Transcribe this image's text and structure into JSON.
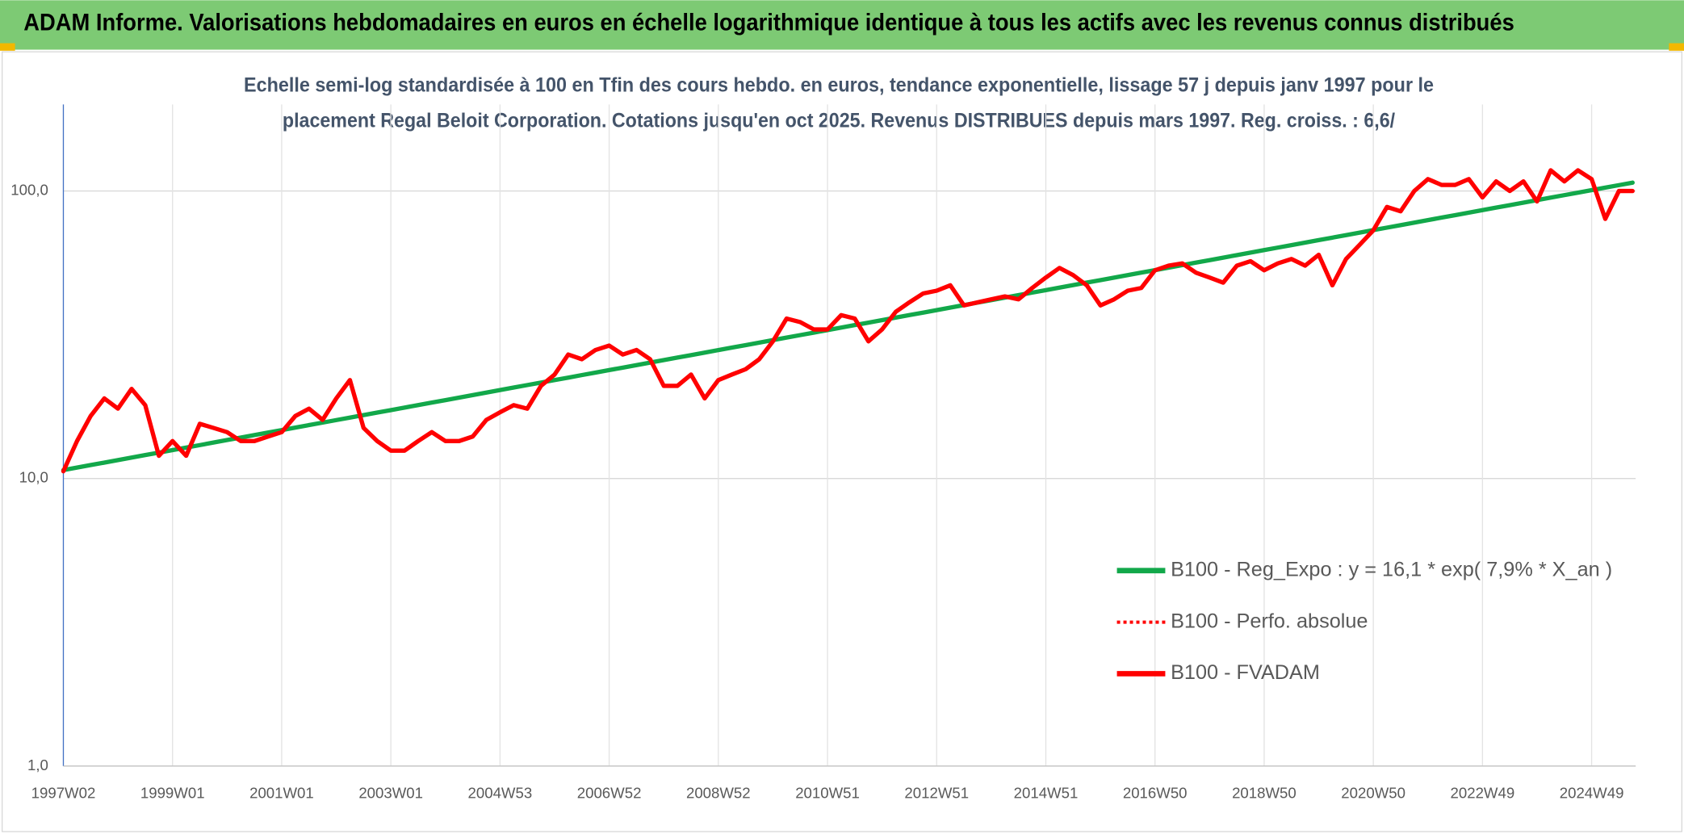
{
  "chart_data": {
    "type": "line",
    "title": "ADAM Informe. Valorisations hebdomadaires en euros en échelle logarithmique identique à tous les actifs avec les revenus connus distribués",
    "subtitle": [
      "Echelle semi-log standardisée à 100 en Tfin des cours hebdo. en euros, tendance exponentielle, lissage 57 j depuis janv 1997 pour le",
      "placement Regal Beloit Corporation. Cotations jusqu'en oct 2025. Revenus DISTRIBUES depuis mars 1997. Reg. croiss. : 6,6/"
    ],
    "log_scale": true,
    "grid": true,
    "legend": "right",
    "ylim": [
      1,
      200
    ],
    "yticks": [
      {
        "value": 1,
        "label": "1,0"
      },
      {
        "value": 10,
        "label": "10,0"
      },
      {
        "value": 100,
        "label": "100,0"
      }
    ],
    "categories": [
      "1997W02",
      null,
      null,
      null,
      null,
      null,
      null,
      null,
      "1999W01",
      null,
      null,
      null,
      null,
      null,
      null,
      null,
      "2001W01",
      null,
      null,
      null,
      null,
      null,
      null,
      null,
      "2003W01",
      null,
      null,
      null,
      null,
      null,
      null,
      null,
      "2004W53",
      null,
      null,
      null,
      null,
      null,
      null,
      null,
      "2006W52",
      null,
      null,
      null,
      null,
      null,
      null,
      null,
      "2008W52",
      null,
      null,
      null,
      null,
      null,
      null,
      null,
      "2010W51",
      null,
      null,
      null,
      null,
      null,
      null,
      null,
      "2012W51",
      null,
      null,
      null,
      null,
      null,
      null,
      null,
      "2014W51",
      null,
      null,
      null,
      null,
      null,
      null,
      null,
      "2016W50",
      null,
      null,
      null,
      null,
      null,
      null,
      null,
      "2018W50",
      null,
      null,
      null,
      null,
      null,
      null,
      null,
      "2020W50",
      null,
      null,
      null,
      null,
      null,
      null,
      null,
      "2022W49",
      null,
      null,
      null,
      null,
      null,
      null,
      null,
      "2024W49",
      null,
      null,
      null
    ],
    "series": [
      {
        "name": "B100 - Reg_Expo : y = 16,1 * exp( 7,9% *  X_an )",
        "color": "#12a84a",
        "style": "solid",
        "values": [
          10.7,
          10.92,
          11.14,
          11.36,
          11.59,
          11.83,
          12.07,
          12.31,
          12.56,
          12.81,
          13.07,
          13.34,
          13.61,
          13.88,
          14.16,
          14.45,
          14.74,
          15.04,
          15.34,
          15.65,
          15.97,
          16.29,
          16.62,
          16.96,
          17.3,
          17.65,
          18.01,
          18.37,
          18.74,
          19.12,
          19.51,
          19.9,
          20.31,
          20.72,
          21.14,
          21.56,
          22.0,
          22.44,
          22.9,
          23.36,
          23.83,
          24.31,
          24.8,
          25.31,
          25.82,
          26.34,
          26.87,
          27.42,
          27.97,
          28.54,
          29.11,
          29.7,
          30.3,
          30.91,
          31.54,
          32.18,
          32.83,
          33.49,
          34.17,
          34.86,
          35.56,
          36.28,
          37.02,
          37.76,
          38.53,
          39.31,
          40.1,
          40.91,
          41.74,
          42.58,
          43.44,
          44.32,
          45.22,
          46.13,
          47.06,
          48.02,
          48.99,
          49.98,
          50.99,
          52.02,
          53.07,
          54.14,
          55.24,
          56.35,
          57.49,
          58.66,
          59.84,
          61.05,
          62.29,
          63.55,
          64.83,
          66.14,
          67.48,
          68.84,
          70.23,
          71.65,
          73.1,
          74.58,
          76.09,
          77.63,
          79.2,
          80.8,
          82.43,
          84.1,
          85.8,
          87.53,
          89.3,
          91.11,
          92.95,
          94.83,
          96.75,
          98.7,
          100.7,
          102.73,
          104.81,
          106.93
        ]
      },
      {
        "name": "B100 - Perfo. absolue",
        "color": "#ff0000",
        "style": "dotted",
        "values": [
          10.6,
          13.5,
          16.5,
          19,
          17.5,
          20.5,
          18,
          12,
          13.5,
          12,
          15.5,
          15,
          14.5,
          13.5,
          13.5,
          14,
          14.5,
          16.5,
          17.5,
          16,
          19,
          22,
          15,
          13.5,
          12.5,
          12.5,
          13.5,
          14.5,
          13.5,
          13.5,
          14,
          16,
          17,
          18,
          17.5,
          21,
          23,
          27,
          26,
          28,
          29,
          27,
          28,
          26,
          21,
          21,
          23,
          19,
          22,
          23,
          24,
          26,
          30,
          36,
          35,
          33,
          33,
          37,
          36,
          30,
          33,
          38,
          41,
          44,
          45,
          47,
          40,
          41,
          42,
          43,
          42,
          46,
          50,
          54,
          51,
          47,
          40,
          42,
          45,
          46,
          53,
          55,
          56,
          52,
          50,
          48,
          55,
          57,
          53,
          56,
          58,
          55,
          60,
          47,
          58,
          65,
          73,
          88,
          85,
          100,
          110,
          105,
          105,
          110,
          95,
          108,
          100,
          108,
          92,
          118,
          108,
          118,
          110,
          80,
          100,
          100
        ]
      },
      {
        "name": "B100 - FVADAM",
        "color": "#ff0000",
        "style": "solid",
        "values": [
          10.6,
          13.5,
          16.5,
          19,
          17.5,
          20.5,
          18,
          12,
          13.5,
          12,
          15.5,
          15,
          14.5,
          13.5,
          13.5,
          14,
          14.5,
          16.5,
          17.5,
          16,
          19,
          22,
          15,
          13.5,
          12.5,
          12.5,
          13.5,
          14.5,
          13.5,
          13.5,
          14,
          16,
          17,
          18,
          17.5,
          21,
          23,
          27,
          26,
          28,
          29,
          27,
          28,
          26,
          21,
          21,
          23,
          19,
          22,
          23,
          24,
          26,
          30,
          36,
          35,
          33,
          33,
          37,
          36,
          30,
          33,
          38,
          41,
          44,
          45,
          47,
          40,
          41,
          42,
          43,
          42,
          46,
          50,
          54,
          51,
          47,
          40,
          42,
          45,
          46,
          53,
          55,
          56,
          52,
          50,
          48,
          55,
          57,
          53,
          56,
          58,
          55,
          60,
          47,
          58,
          65,
          73,
          88,
          85,
          100,
          110,
          105,
          105,
          110,
          95,
          108,
          100,
          108,
          92,
          118,
          108,
          118,
          110,
          80,
          100,
          100
        ]
      }
    ]
  }
}
